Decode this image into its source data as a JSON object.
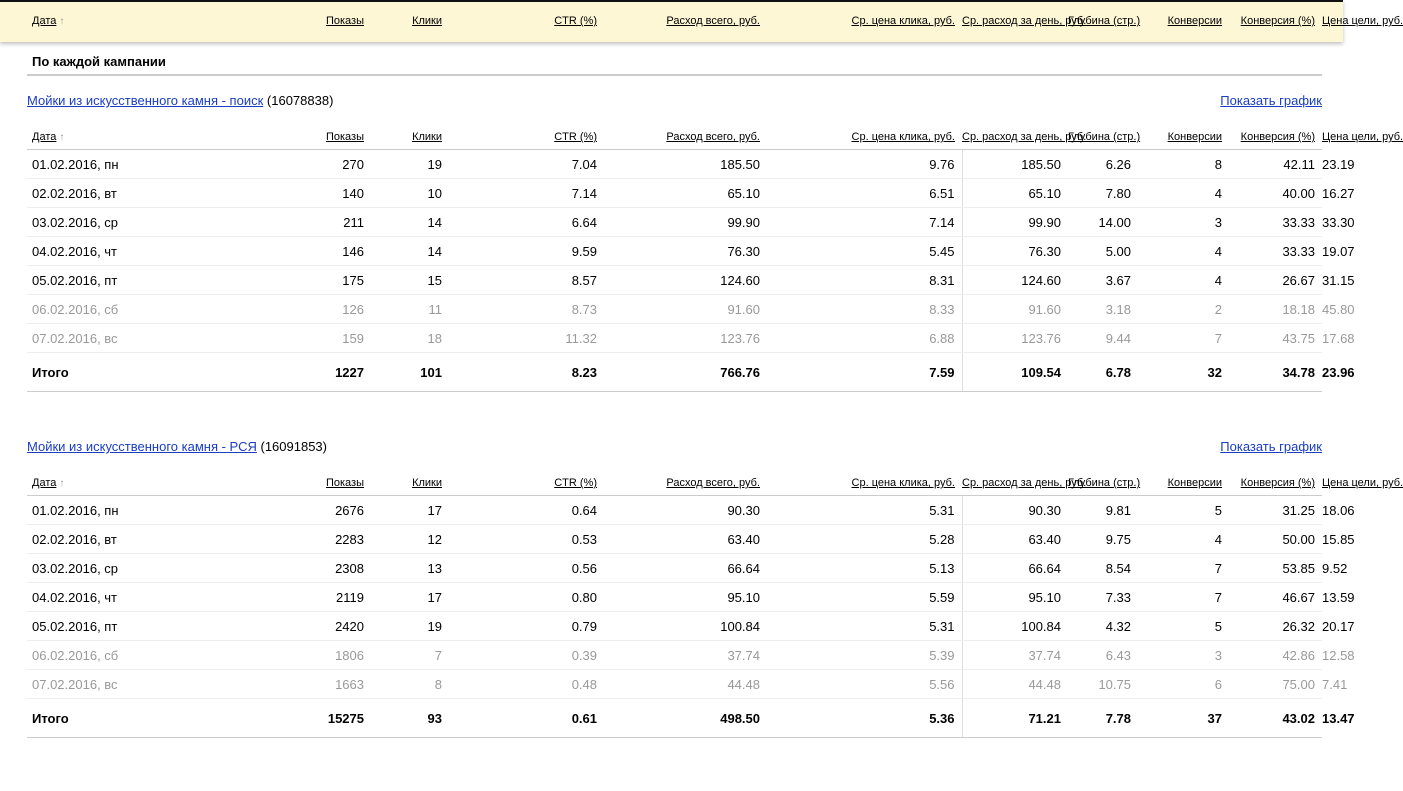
{
  "columns": [
    "Дата",
    "Показы",
    "Клики",
    "CTR (%)",
    "Расход всего, руб.",
    "Ср. цена клика, руб.",
    "Ср. расход за день, руб.",
    "Глубина (стр.)",
    "Конверсии",
    "Конверсия (%)",
    "Цена цели, руб."
  ],
  "sort_arrow": "↑",
  "section_title": "По каждой кампании",
  "campaigns": [
    {
      "name": "Мойки из искусственного камня - поиск",
      "id": "(16078838)",
      "show_graph": "Показать график",
      "rows": [
        [
          "01.02.2016, пн",
          "270",
          "19",
          "7.04",
          "185.50",
          "9.76",
          "185.50",
          "6.26",
          "8",
          "42.11",
          "23.19"
        ],
        [
          "02.02.2016, вт",
          "140",
          "10",
          "7.14",
          "65.10",
          "6.51",
          "65.10",
          "7.80",
          "4",
          "40.00",
          "16.27"
        ],
        [
          "03.02.2016, ср",
          "211",
          "14",
          "6.64",
          "99.90",
          "7.14",
          "99.90",
          "14.00",
          "3",
          "33.33",
          "33.30"
        ],
        [
          "04.02.2016, чт",
          "146",
          "14",
          "9.59",
          "76.30",
          "5.45",
          "76.30",
          "5.00",
          "4",
          "33.33",
          "19.07"
        ],
        [
          "05.02.2016, пт",
          "175",
          "15",
          "8.57",
          "124.60",
          "8.31",
          "124.60",
          "3.67",
          "4",
          "26.67",
          "31.15"
        ],
        [
          "06.02.2016, сб",
          "126",
          "11",
          "8.73",
          "91.60",
          "8.33",
          "91.60",
          "3.18",
          "2",
          "18.18",
          "45.80"
        ],
        [
          "07.02.2016, вс",
          "159",
          "18",
          "11.32",
          "123.76",
          "6.88",
          "123.76",
          "9.44",
          "7",
          "43.75",
          "17.68"
        ]
      ],
      "total": [
        "Итого",
        "1227",
        "101",
        "8.23",
        "766.76",
        "7.59",
        "109.54",
        "6.78",
        "32",
        "34.78",
        "23.96"
      ]
    },
    {
      "name": "Мойки из искусственного камня - РСЯ",
      "id": "(16091853)",
      "show_graph": "Показать график",
      "rows": [
        [
          "01.02.2016, пн",
          "2676",
          "17",
          "0.64",
          "90.30",
          "5.31",
          "90.30",
          "9.81",
          "5",
          "31.25",
          "18.06"
        ],
        [
          "02.02.2016, вт",
          "2283",
          "12",
          "0.53",
          "63.40",
          "5.28",
          "63.40",
          "9.75",
          "4",
          "50.00",
          "15.85"
        ],
        [
          "03.02.2016, ср",
          "2308",
          "13",
          "0.56",
          "66.64",
          "5.13",
          "66.64",
          "8.54",
          "7",
          "53.85",
          "9.52"
        ],
        [
          "04.02.2016, чт",
          "2119",
          "17",
          "0.80",
          "95.10",
          "5.59",
          "95.10",
          "7.33",
          "7",
          "46.67",
          "13.59"
        ],
        [
          "05.02.2016, пт",
          "2420",
          "19",
          "0.79",
          "100.84",
          "5.31",
          "100.84",
          "4.32",
          "5",
          "26.32",
          "20.17"
        ],
        [
          "06.02.2016, сб",
          "1806",
          "7",
          "0.39",
          "37.74",
          "5.39",
          "37.74",
          "6.43",
          "3",
          "42.86",
          "12.58"
        ],
        [
          "07.02.2016, вс",
          "1663",
          "8",
          "0.48",
          "44.48",
          "5.56",
          "44.48",
          "10.75",
          "6",
          "75.00",
          "7.41"
        ]
      ],
      "total": [
        "Итого",
        "15275",
        "93",
        "0.61",
        "498.50",
        "5.36",
        "71.21",
        "7.78",
        "37",
        "43.02",
        "13.47"
      ]
    }
  ]
}
